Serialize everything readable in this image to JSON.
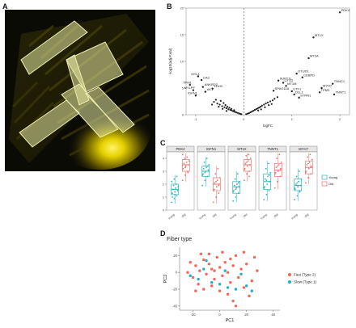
{
  "figure": {
    "panel_letters": [
      "A",
      "B",
      "C",
      "D"
    ]
  },
  "colors": {
    "young": "#29b3c1",
    "old": "#f07167",
    "fast": "#f4665b",
    "slow": "#1fb0c8",
    "volcano_point": "#222222",
    "fiber_overlay": "#d9e08a",
    "micrograph_bg": "#0b0b06",
    "micrograph_glow": "#f3e000"
  },
  "panel_a": {
    "scale_labels": [
      "",
      "",
      "",
      ""
    ]
  },
  "chart_data": [
    {
      "id": "volcano",
      "type": "scatter",
      "title": "",
      "xlabel": "logFC",
      "ylabel": "-log10(adj.P.Val)",
      "xlim": [
        -1.2,
        2.2
      ],
      "ylim": [
        0,
        20
      ],
      "x_ticks": [
        -1,
        0,
        1,
        2
      ],
      "y_ticks": [
        0,
        5,
        10,
        15,
        20
      ],
      "vline": 0,
      "points": [
        {
          "x": -0.62,
          "y": 2.4
        },
        {
          "x": -0.55,
          "y": 2.1
        },
        {
          "x": -0.5,
          "y": 1.9
        },
        {
          "x": -0.45,
          "y": 1.6
        },
        {
          "x": -0.4,
          "y": 1.4
        },
        {
          "x": -0.36,
          "y": 1.2
        },
        {
          "x": -0.32,
          "y": 1.0
        },
        {
          "x": -0.28,
          "y": 0.9
        },
        {
          "x": -0.25,
          "y": 0.8
        },
        {
          "x": -0.22,
          "y": 0.65
        },
        {
          "x": -0.19,
          "y": 0.55
        },
        {
          "x": -0.16,
          "y": 0.45
        },
        {
          "x": -0.13,
          "y": 0.35
        },
        {
          "x": -0.1,
          "y": 0.25
        },
        {
          "x": -0.07,
          "y": 0.15
        },
        {
          "x": -0.05,
          "y": 0.1
        },
        {
          "x": -0.58,
          "y": 2.8
        },
        {
          "x": -0.48,
          "y": 2.6
        },
        {
          "x": -0.42,
          "y": 2.2
        },
        {
          "x": -0.38,
          "y": 1.8
        },
        {
          "x": -0.34,
          "y": 1.5
        },
        {
          "x": -0.3,
          "y": 1.3
        },
        {
          "x": -0.26,
          "y": 1.1
        },
        {
          "x": -0.2,
          "y": 0.85
        },
        {
          "x": -0.66,
          "y": 1.9
        },
        {
          "x": -0.52,
          "y": 1.5
        },
        {
          "x": -0.44,
          "y": 1.1
        },
        {
          "x": -0.36,
          "y": 0.7
        },
        {
          "x": 0.05,
          "y": 0.1
        },
        {
          "x": 0.08,
          "y": 0.2
        },
        {
          "x": 0.11,
          "y": 0.3
        },
        {
          "x": 0.14,
          "y": 0.45
        },
        {
          "x": 0.17,
          "y": 0.6
        },
        {
          "x": 0.2,
          "y": 0.75
        },
        {
          "x": 0.23,
          "y": 0.9
        },
        {
          "x": 0.26,
          "y": 1.05
        },
        {
          "x": 0.29,
          "y": 1.2
        },
        {
          "x": 0.32,
          "y": 1.35
        },
        {
          "x": 0.35,
          "y": 1.5
        },
        {
          "x": 0.38,
          "y": 1.7
        },
        {
          "x": 0.42,
          "y": 1.9
        },
        {
          "x": 0.46,
          "y": 2.1
        },
        {
          "x": 0.5,
          "y": 2.3
        },
        {
          "x": 0.55,
          "y": 2.5
        },
        {
          "x": 0.6,
          "y": 2.7
        },
        {
          "x": 0.3,
          "y": 0.8
        },
        {
          "x": 0.36,
          "y": 1.0
        },
        {
          "x": 0.44,
          "y": 1.4
        },
        {
          "x": 0.52,
          "y": 1.8
        },
        {
          "x": 0.58,
          "y": 2.0
        },
        {
          "x": 0.64,
          "y": 3.0
        },
        {
          "x": 0.7,
          "y": 3.3
        }
      ],
      "labeled_points": [
        {
          "label": "PDK4",
          "x": 2.0,
          "y": 19.2
        },
        {
          "label": "MT1X",
          "x": 1.45,
          "y": 14.5
        },
        {
          "label": "MT2A",
          "x": 1.35,
          "y": 10.6
        },
        {
          "label": "OTUD1",
          "x": 1.1,
          "y": 7.7
        },
        {
          "label": "CEBPD",
          "x": 1.22,
          "y": 7.0
        },
        {
          "label": "SUPT7L",
          "x": 0.72,
          "y": 6.4
        },
        {
          "label": "GTG2",
          "x": 0.82,
          "y": 6.0
        },
        {
          "label": "MT1M",
          "x": 0.88,
          "y": 5.4
        },
        {
          "label": "SPAG11A",
          "x": 0.62,
          "y": 4.5
        },
        {
          "label": "UTF1",
          "x": 1.0,
          "y": 4.4
        },
        {
          "label": "DLL1",
          "x": 1.05,
          "y": 3.8
        },
        {
          "label": "STRN1",
          "x": 1.15,
          "y": 3.2
        },
        {
          "label": "TNNC1",
          "x": 1.85,
          "y": 5.8
        },
        {
          "label": "MYH7",
          "x": 1.62,
          "y": 5.0
        },
        {
          "label": "TPM3",
          "x": 1.58,
          "y": 4.2
        },
        {
          "label": "TNNT1",
          "x": 1.88,
          "y": 3.8
        },
        {
          "label": "MYL1",
          "x": -0.95,
          "y": 7.2
        },
        {
          "label": "CA3",
          "x": -0.88,
          "y": 6.5
        },
        {
          "label": "TPM1",
          "x": -1.12,
          "y": 5.6
        },
        {
          "label": "ANKRD2",
          "x": -0.85,
          "y": 5.2
        },
        {
          "label": "MYLPF",
          "x": -1.05,
          "y": 4.6
        },
        {
          "label": "LDHC",
          "x": -0.65,
          "y": 4.9
        },
        {
          "label": "AK1",
          "x": -0.8,
          "y": 4.3
        },
        {
          "label": "IGFN1",
          "x": -1.0,
          "y": 3.6
        }
      ]
    },
    {
      "id": "boxplots",
      "type": "box",
      "title": "",
      "ylabel": "",
      "categories": [
        "Young",
        "Old"
      ],
      "y_ticks": [
        0,
        1,
        2,
        3,
        4
      ],
      "ylim": [
        0,
        4.5
      ],
      "legend": {
        "position": "right",
        "entries": [
          "Young",
          "Old"
        ]
      },
      "genes": [
        {
          "name": "PDK4",
          "young": {
            "q1": 1.2,
            "median": 1.6,
            "q3": 2.0,
            "min": 0.5,
            "max": 2.7,
            "points": [
              0.6,
              0.9,
              1.1,
              1.3,
              1.4,
              1.5,
              1.6,
              1.7,
              1.8,
              1.9,
              2.0,
              2.2,
              2.4,
              2.6,
              1.0,
              1.2
            ]
          },
          "old": {
            "q1": 3.0,
            "median": 3.5,
            "q3": 3.9,
            "min": 2.2,
            "max": 4.4,
            "points": [
              2.3,
              2.7,
              3.0,
              3.2,
              3.4,
              3.5,
              3.6,
              3.7,
              3.8,
              4.0,
              4.1,
              4.3,
              3.3,
              2.9
            ]
          }
        },
        {
          "name": "IGFN1",
          "young": {
            "q1": 2.6,
            "median": 3.0,
            "q3": 3.4,
            "min": 1.8,
            "max": 4.1,
            "points": [
              1.9,
              2.3,
              2.6,
              2.8,
              3.0,
              3.1,
              3.2,
              3.3,
              3.5,
              3.7,
              4.0,
              2.7,
              2.9,
              3.4
            ]
          },
          "old": {
            "q1": 1.5,
            "median": 2.0,
            "q3": 2.5,
            "min": 0.5,
            "max": 3.4,
            "points": [
              0.6,
              1.0,
              1.3,
              1.6,
              1.8,
              2.0,
              2.1,
              2.3,
              2.5,
              2.8,
              3.2,
              1.5,
              2.2,
              1.9
            ]
          }
        },
        {
          "name": "MT1X",
          "young": {
            "q1": 1.3,
            "median": 1.8,
            "q3": 2.2,
            "min": 0.6,
            "max": 3.0,
            "points": [
              0.7,
              1.0,
              1.3,
              1.5,
              1.7,
              1.8,
              1.9,
              2.0,
              2.2,
              2.4,
              2.8,
              1.4,
              1.6,
              2.1
            ]
          },
          "old": {
            "q1": 3.0,
            "median": 3.5,
            "q3": 3.9,
            "min": 2.2,
            "max": 4.4,
            "points": [
              2.3,
              2.8,
              3.0,
              3.2,
              3.4,
              3.5,
              3.6,
              3.8,
              4.0,
              4.2,
              4.3,
              3.1,
              3.7,
              2.6
            ]
          }
        },
        {
          "name": "TNNT1",
          "young": {
            "q1": 1.6,
            "median": 2.2,
            "q3": 2.8,
            "min": 0.7,
            "max": 3.8,
            "points": [
              0.8,
              1.2,
              1.5,
              1.8,
              2.0,
              2.2,
              2.4,
              2.6,
              2.9,
              3.2,
              3.6,
              1.7,
              2.3,
              2.7
            ]
          },
          "old": {
            "q1": 2.6,
            "median": 3.1,
            "q3": 3.6,
            "min": 1.6,
            "max": 4.4,
            "points": [
              1.7,
              2.2,
              2.6,
              2.9,
              3.0,
              3.2,
              3.3,
              3.5,
              3.7,
              4.0,
              4.3,
              2.8,
              3.4,
              3.1
            ]
          }
        },
        {
          "name": "MYH7",
          "young": {
            "q1": 1.5,
            "median": 1.9,
            "q3": 2.4,
            "min": 0.7,
            "max": 3.2,
            "points": [
              0.8,
              1.1,
              1.4,
              1.6,
              1.8,
              1.9,
              2.0,
              2.2,
              2.4,
              2.6,
              3.0,
              1.7,
              2.1,
              1.5
            ]
          },
          "old": {
            "q1": 2.8,
            "median": 3.3,
            "q3": 3.8,
            "min": 2.0,
            "max": 4.4,
            "points": [
              2.1,
              2.5,
              2.8,
              3.0,
              3.2,
              3.3,
              3.5,
              3.7,
              3.9,
              4.1,
              4.3,
              2.9,
              3.6,
              3.4
            ]
          }
        }
      ]
    },
    {
      "id": "pca",
      "type": "scatter",
      "title": "Fiber type",
      "xlabel": "PC1",
      "ylabel": "PC2",
      "xlim": [
        -30,
        45
      ],
      "ylim": [
        -45,
        30
      ],
      "x_ticks": [
        -20,
        0,
        20,
        40
      ],
      "y_ticks": [
        -40,
        -20,
        0,
        20
      ],
      "legend": {
        "position": "right"
      },
      "series": [
        {
          "name": "Fast (Type 2)",
          "points": [
            [
              -22,
              12
            ],
            [
              -18,
              8
            ],
            [
              -15,
              2
            ],
            [
              -12,
              15
            ],
            [
              -10,
              -2
            ],
            [
              -8,
              10
            ],
            [
              -6,
              4
            ],
            [
              -4,
              -8
            ],
            [
              -2,
              18
            ],
            [
              0,
              6
            ],
            [
              2,
              -4
            ],
            [
              4,
              12
            ],
            [
              6,
              0
            ],
            [
              8,
              -12
            ],
            [
              10,
              8
            ],
            [
              12,
              20
            ],
            [
              14,
              -6
            ],
            [
              16,
              4
            ],
            [
              18,
              -18
            ],
            [
              20,
              10
            ],
            [
              -20,
              -6
            ],
            [
              -16,
              -14
            ],
            [
              -12,
              -20
            ],
            [
              -6,
              -16
            ],
            [
              0,
              -22
            ],
            [
              6,
              -26
            ],
            [
              10,
              -34
            ],
            [
              -8,
              22
            ],
            [
              24,
              -10
            ],
            [
              28,
              2
            ],
            [
              -24,
              0
            ],
            [
              -14,
              22
            ],
            [
              2,
              24
            ],
            [
              22,
              -28
            ],
            [
              -4,
              2
            ],
            [
              8,
              16
            ],
            [
              18,
              24
            ],
            [
              -18,
              -22
            ],
            [
              12,
              -40
            ],
            [
              26,
              18
            ]
          ]
        },
        {
          "name": "Slow (Type 1)",
          "points": [
            [
              -22,
              -4
            ],
            [
              -16,
              -8
            ],
            [
              -10,
              14
            ],
            [
              -6,
              -12
            ],
            [
              0,
              -14
            ],
            [
              4,
              2
            ],
            [
              12,
              -20
            ],
            [
              16,
              -2
            ],
            [
              20,
              -16
            ],
            [
              24,
              -22
            ],
            [
              -12,
              4
            ],
            [
              6,
              -18
            ]
          ]
        }
      ]
    }
  ]
}
